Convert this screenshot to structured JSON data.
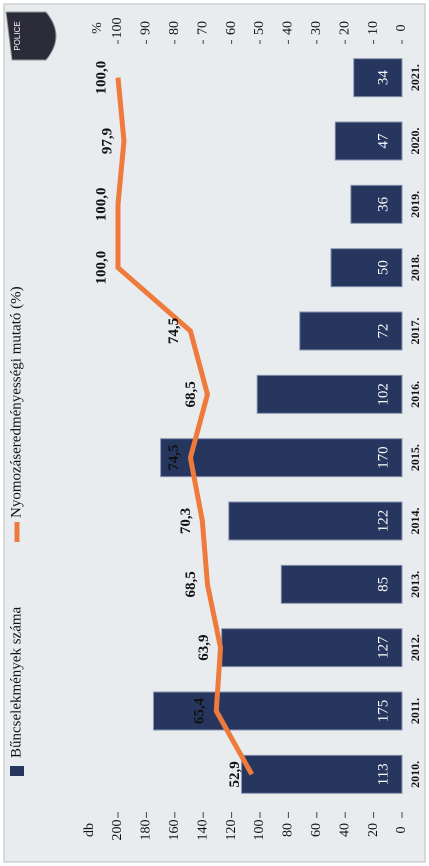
{
  "chart_data": {
    "type": "bar_line",
    "logo_text": "POLICE",
    "categories": [
      "2010.",
      "2011.",
      "2012.",
      "2013.",
      "2014.",
      "2015.",
      "2016.",
      "2017.",
      "2018.",
      "2019.",
      "2020.",
      "2021."
    ],
    "ylabel": "db",
    "y2label": "%",
    "ylim": [
      0,
      200
    ],
    "yticks": [
      0,
      20,
      40,
      60,
      80,
      100,
      120,
      140,
      160,
      180,
      200
    ],
    "y2lim": [
      0,
      100
    ],
    "y2ticks": [
      0,
      10,
      20,
      30,
      40,
      50,
      60,
      70,
      80,
      90,
      100
    ],
    "legend": "top",
    "series": [
      {
        "name": "Bűncselekmények száma",
        "color": "#27365f",
        "type": "bar",
        "values": [
          113,
          175,
          127,
          85,
          122,
          170,
          102,
          72,
          50,
          36,
          47,
          34
        ]
      },
      {
        "name": "Nyomozáseredményességi mutató (%)",
        "color": "#ee7a3c",
        "type": "line",
        "axis": "y2",
        "values": [
          52.9,
          65.4,
          63.9,
          68.5,
          70.3,
          74.5,
          68.5,
          74.5,
          100.0,
          100.0,
          97.9,
          100.0
        ],
        "value_labels": [
          "52,9",
          "65,4",
          "63,9",
          "68,5",
          "70,3",
          "74,5",
          "68,5",
          "74,5",
          "100,0",
          "100,0",
          "97,9",
          "100,0"
        ]
      }
    ]
  }
}
